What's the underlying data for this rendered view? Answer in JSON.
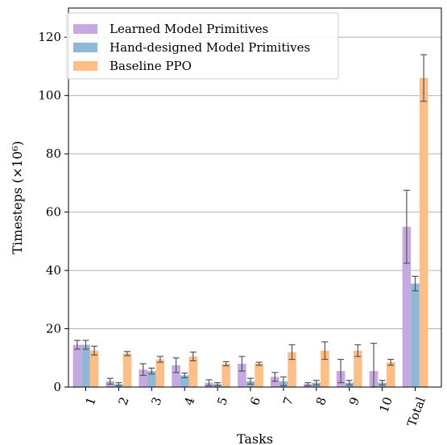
{
  "chart_data": {
    "type": "bar",
    "xlabel": "Tasks",
    "ylabel": "Timesteps (×10⁶)",
    "ylim": [
      0,
      130
    ],
    "yticks": [
      0,
      20,
      40,
      60,
      80,
      100,
      120
    ],
    "grid": "horizontal",
    "legend_position": "top-left",
    "categories": [
      "1",
      "2",
      "3",
      "4",
      "5",
      "6",
      "7",
      "8",
      "9",
      "10",
      "Total"
    ],
    "series": [
      {
        "name": "Learned Model Primitives",
        "color": "#c5a9e0",
        "values": [
          14.5,
          2.0,
          6.0,
          7.5,
          1.5,
          8.0,
          3.5,
          1.0,
          5.5,
          5.5,
          55.0
        ],
        "errors": [
          1.5,
          1.0,
          2.0,
          2.5,
          1.0,
          2.5,
          1.5,
          0.5,
          4.0,
          9.5,
          12.5
        ]
      },
      {
        "name": "Hand-designed Model Primitives",
        "color": "#8fb8d8",
        "values": [
          14.5,
          1.0,
          5.5,
          4.0,
          1.0,
          2.0,
          2.0,
          1.5,
          1.5,
          1.5,
          35.5
        ],
        "errors": [
          1.5,
          0.5,
          1.0,
          0.8,
          0.5,
          1.0,
          1.5,
          0.8,
          0.8,
          0.8,
          2.5
        ]
      },
      {
        "name": "Baseline PPO",
        "color": "#ffbe86",
        "values": [
          12.5,
          11.5,
          9.5,
          10.5,
          8.0,
          8.0,
          12.0,
          12.5,
          12.5,
          8.5,
          106.0
        ],
        "errors": [
          1.5,
          0.7,
          1.0,
          1.5,
          0.7,
          0.5,
          2.5,
          3.0,
          2.0,
          1.0,
          8.0
        ]
      }
    ],
    "error_bar_color": "#555555"
  }
}
